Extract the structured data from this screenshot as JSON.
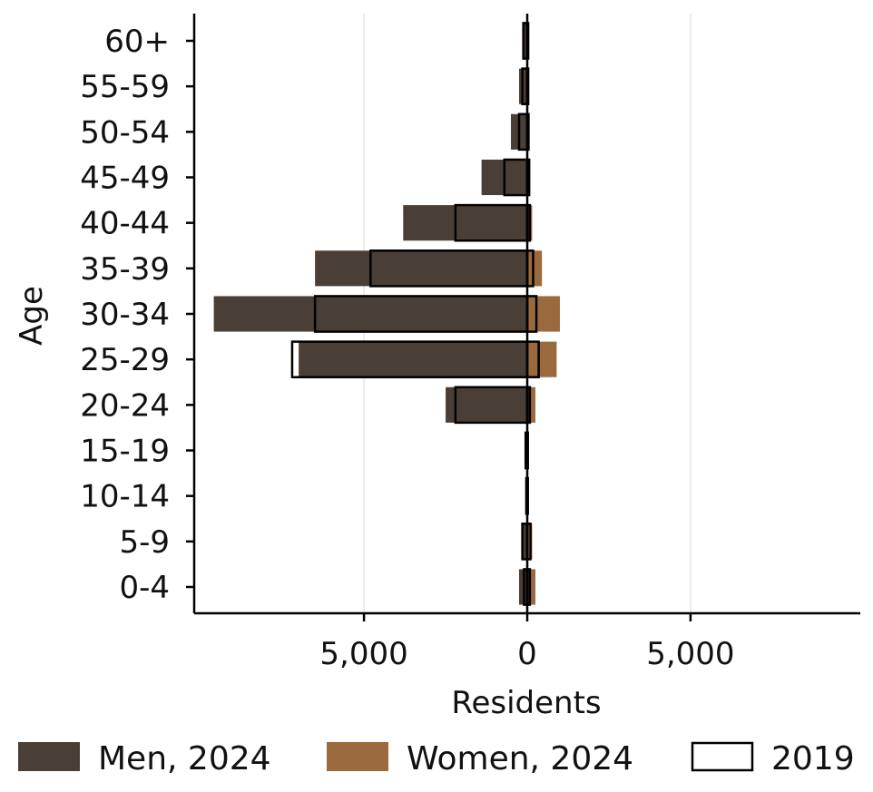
{
  "chart_data": {
    "type": "bar",
    "orientation": "horizontal",
    "title": "",
    "xlabel": "Residents",
    "ylabel": "Age",
    "categories": [
      "0-4",
      "5-9",
      "10-14",
      "15-19",
      "20-24",
      "25-29",
      "30-34",
      "35-39",
      "40-44",
      "45-49",
      "50-54",
      "55-59",
      "60+"
    ],
    "xlim": [
      -10200,
      10200
    ],
    "x_ticks": [
      -5000,
      0,
      5000
    ],
    "x_tick_labels": [
      "5,000",
      "0",
      "5,000"
    ],
    "grid": "vertical",
    "legend_position": "bottom",
    "series": [
      {
        "name": "Men, 2024",
        "side": "left",
        "style": "filled",
        "color": "#4a3f36",
        "values": [
          250,
          180,
          30,
          60,
          2500,
          7000,
          9600,
          6500,
          3800,
          1400,
          500,
          250,
          130
        ]
      },
      {
        "name": "Women, 2024",
        "side": "right",
        "style": "filled",
        "color": "#9a6a3e",
        "values": [
          250,
          150,
          20,
          20,
          250,
          900,
          1000,
          450,
          150,
          60,
          40,
          30,
          20
        ]
      },
      {
        "name": "2019",
        "side": "both",
        "style": "outline",
        "color": "#000000",
        "men_values": [
          100,
          150,
          30,
          50,
          2200,
          7200,
          6500,
          4800,
          2200,
          700,
          250,
          150,
          120
        ],
        "women_values": [
          80,
          100,
          20,
          20,
          80,
          350,
          280,
          180,
          80,
          60,
          40,
          30,
          30
        ]
      }
    ]
  }
}
